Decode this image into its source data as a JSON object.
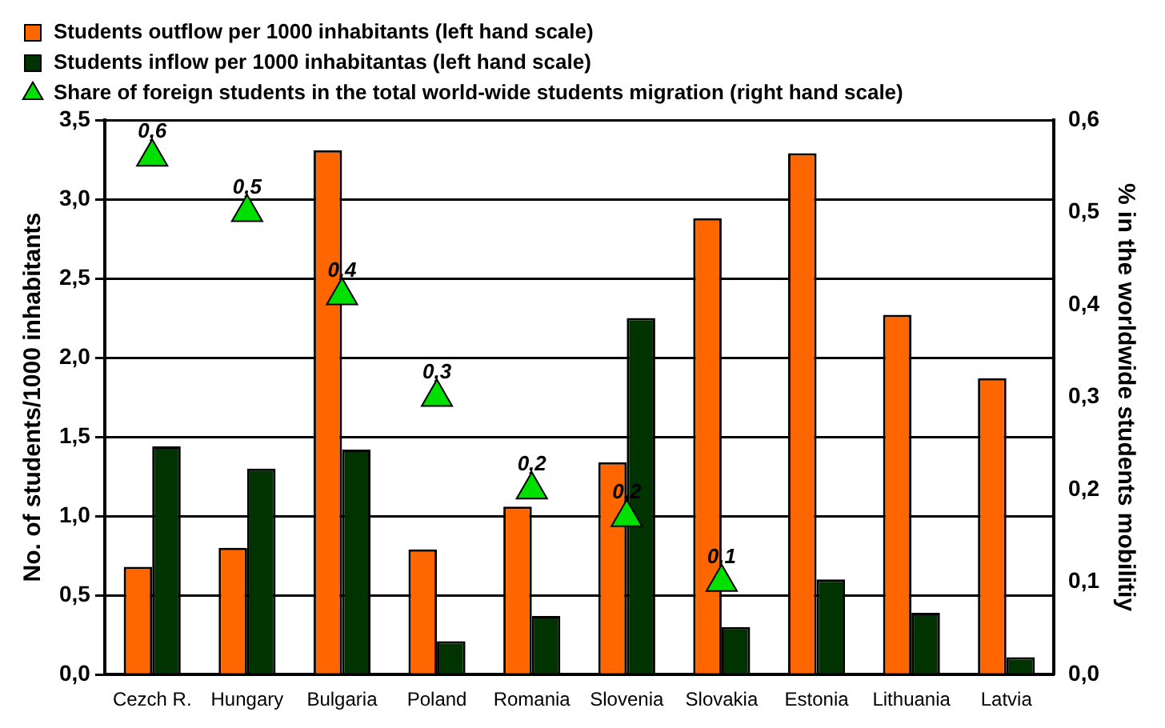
{
  "chart_data": {
    "type": "bar",
    "ylabel": "No. of students/1000 inhabitants",
    "y2label": "% in the worldwide students mobilitiy",
    "categories": [
      "Cezch R.",
      "Hungary",
      "Bulgaria",
      "Poland",
      "Romania",
      "Slovenia",
      "Slovakia",
      "Estonia",
      "Lithuania",
      "Latvia"
    ],
    "series": [
      {
        "name": "Students outflow per 1000 inhabitants (left hand scale)",
        "color": "#ff6600",
        "values": [
          0.68,
          0.8,
          3.31,
          0.79,
          1.06,
          1.34,
          2.88,
          3.29,
          2.27,
          1.87
        ]
      },
      {
        "name": "Students inflow per 1000 inhabitantas (left hand scale)",
        "color": "#003300",
        "values": [
          1.44,
          1.3,
          1.42,
          0.21,
          0.37,
          2.25,
          0.3,
          0.6,
          0.39,
          0.11
        ]
      },
      {
        "name": "Share of foreign students in the total world-wide students migration (right hand scale)",
        "color": "#00e000",
        "type": "scatter",
        "axis": "y2",
        "marker": "triangle",
        "x": [
          "Cezch R.",
          "Hungary",
          "Bulgaria",
          "Poland",
          "Romania",
          "Slovenia",
          "Slovakia"
        ],
        "values": [
          0.56,
          0.5,
          0.41,
          0.3,
          0.2,
          0.17,
          0.1
        ],
        "value_labels": [
          "0,6",
          "0,5",
          "0,4",
          "0,3",
          "0,2",
          "0,2",
          "0,1"
        ]
      }
    ],
    "ylim": [
      0,
      3.5
    ],
    "yticks": [
      {
        "value": 0,
        "label": "0,0"
      },
      {
        "value": 0.5,
        "label": "0,5"
      },
      {
        "value": 1,
        "label": "1,0"
      },
      {
        "value": 1.5,
        "label": "1,5"
      },
      {
        "value": 2,
        "label": "2,0"
      },
      {
        "value": 2.5,
        "label": "2,5"
      },
      {
        "value": 3,
        "label": "3,0"
      },
      {
        "value": 3.5,
        "label": "3,5"
      }
    ],
    "y2lim": [
      0,
      0.6
    ],
    "y2ticks": [
      {
        "value": 0,
        "label": "0,0"
      },
      {
        "value": 0.1,
        "label": "0,1"
      },
      {
        "value": 0.2,
        "label": "0,2"
      },
      {
        "value": 0.3,
        "label": "0,3"
      },
      {
        "value": 0.4,
        "label": "0,4"
      },
      {
        "value": 0.5,
        "label": "0,5"
      },
      {
        "value": 0.6,
        "label": "0,6"
      }
    ],
    "grid": "y",
    "legend": "top left"
  }
}
